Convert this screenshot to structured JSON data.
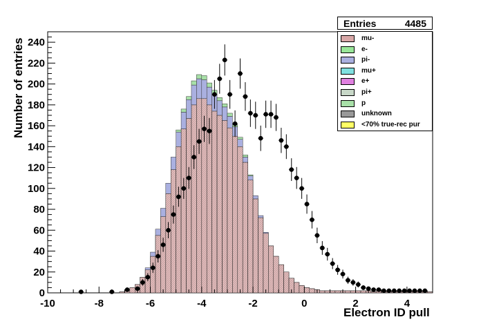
{
  "stats": {
    "label": "Entries",
    "value": "4485"
  },
  "axes": {
    "xlabel": "Electron ID pull",
    "ylabel": "Number of entries"
  },
  "legend": [
    {
      "label": "mu-",
      "color": "#d9a8a8"
    },
    {
      "label": "e-",
      "color": "#99e699"
    },
    {
      "label": "pi-",
      "color": "#aab0e0"
    },
    {
      "label": "mu+",
      "color": "#80e0e0"
    },
    {
      "label": "e+",
      "color": "#e080e0"
    },
    {
      "label": "pi+",
      "color": "#c8d8c8"
    },
    {
      "label": "p",
      "color": "#a8e0a8"
    },
    {
      "label": "unknown",
      "color": "#999999"
    },
    {
      "label": "<70% true-rec pur",
      "color": "#ffff66"
    }
  ],
  "chart_data": {
    "type": "histogram",
    "xlim": [
      -10,
      5
    ],
    "ylim": [
      0,
      250
    ],
    "xticks": [
      "-10",
      "-8",
      "-6",
      "-4",
      "-2",
      "0",
      "2",
      "4"
    ],
    "yticks": [
      "0",
      "20",
      "40",
      "60",
      "80",
      "100",
      "120",
      "140",
      "160",
      "180",
      "200",
      "220",
      "240"
    ],
    "bin_width": 0.2,
    "stack": [
      {
        "name": "mu-",
        "color": "#d9a8a8",
        "bins": [
          [
            -7.2,
            1
          ],
          [
            -7.0,
            3
          ],
          [
            -6.8,
            5
          ],
          [
            -6.6,
            8
          ],
          [
            -6.4,
            15
          ],
          [
            -6.2,
            22
          ],
          [
            -6.0,
            35
          ],
          [
            -5.8,
            55
          ],
          [
            -5.6,
            73
          ],
          [
            -5.4,
            95
          ],
          [
            -5.2,
            118
          ],
          [
            -5.0,
            140
          ],
          [
            -4.8,
            157
          ],
          [
            -4.6,
            167
          ],
          [
            -4.4,
            180
          ],
          [
            -4.2,
            186
          ],
          [
            -4.0,
            186
          ],
          [
            -3.8,
            180
          ],
          [
            -3.6,
            174
          ],
          [
            -3.4,
            170
          ],
          [
            -3.2,
            165
          ],
          [
            -3.0,
            158
          ],
          [
            -2.8,
            150
          ],
          [
            -2.6,
            140
          ],
          [
            -2.4,
            125
          ],
          [
            -2.2,
            108
          ],
          [
            -2.0,
            90
          ],
          [
            -1.8,
            72
          ],
          [
            -1.6,
            57
          ],
          [
            -1.4,
            45
          ],
          [
            -1.2,
            35
          ],
          [
            -1.0,
            27
          ],
          [
            -0.8,
            20
          ],
          [
            -0.6,
            14
          ],
          [
            -0.4,
            10
          ],
          [
            -0.2,
            7
          ],
          [
            0.0,
            5
          ],
          [
            0.2,
            4
          ],
          [
            0.4,
            3
          ],
          [
            0.6,
            2
          ],
          [
            0.8,
            2
          ],
          [
            1.0,
            2
          ],
          [
            1.2,
            2
          ],
          [
            1.4,
            2
          ],
          [
            1.6,
            2
          ],
          [
            1.8,
            2
          ],
          [
            2.0,
            2
          ],
          [
            2.2,
            2
          ],
          [
            2.4,
            2
          ],
          [
            2.6,
            1
          ],
          [
            2.8,
            2
          ],
          [
            3.0,
            2
          ],
          [
            3.2,
            2
          ],
          [
            3.4,
            2
          ],
          [
            3.6,
            2
          ],
          [
            3.8,
            2
          ],
          [
            4.0,
            1
          ],
          [
            4.2,
            2
          ],
          [
            4.4,
            2
          ],
          [
            4.6,
            2
          ],
          [
            4.8,
            1
          ]
        ]
      },
      {
        "name": "pi-",
        "color": "#aab0e0",
        "bins": [
          [
            -6.2,
            2
          ],
          [
            -6.0,
            4
          ],
          [
            -5.8,
            6
          ],
          [
            -5.6,
            8
          ],
          [
            -5.4,
            10
          ],
          [
            -5.2,
            12
          ],
          [
            -5.0,
            14
          ],
          [
            -4.8,
            16
          ],
          [
            -4.6,
            18
          ],
          [
            -4.4,
            19
          ],
          [
            -4.2,
            19
          ],
          [
            -4.0,
            18
          ],
          [
            -3.8,
            17
          ],
          [
            -3.6,
            16
          ],
          [
            -3.4,
            14
          ],
          [
            -3.2,
            13
          ],
          [
            -3.0,
            11
          ],
          [
            -2.8,
            9
          ],
          [
            -2.6,
            7
          ],
          [
            -2.4,
            5
          ],
          [
            -2.2,
            4
          ],
          [
            -2.0,
            3
          ],
          [
            -1.8,
            2
          ],
          [
            -1.6,
            1
          ]
        ]
      },
      {
        "name": "p",
        "color": "#a8e0a8",
        "bins": [
          [
            -5.0,
            2
          ],
          [
            -4.8,
            3
          ],
          [
            -4.6,
            3
          ],
          [
            -4.4,
            4
          ],
          [
            -4.2,
            4
          ],
          [
            -4.0,
            4
          ],
          [
            -3.8,
            4
          ],
          [
            -3.6,
            4
          ],
          [
            -3.4,
            3
          ],
          [
            -3.2,
            3
          ],
          [
            -3.0,
            3
          ],
          [
            -2.8,
            2
          ],
          [
            -2.6,
            2
          ],
          [
            -2.4,
            2
          ],
          [
            -2.2,
            1
          ]
        ]
      }
    ],
    "data_points": [
      {
        "x": -8.7,
        "y": 1
      },
      {
        "x": -7.5,
        "y": 1
      },
      {
        "x": -6.9,
        "y": 3
      },
      {
        "x": -6.5,
        "y": 4
      },
      {
        "x": -6.3,
        "y": 10
      },
      {
        "x": -6.1,
        "y": 15
      },
      {
        "x": -5.9,
        "y": 24
      },
      {
        "x": -5.7,
        "y": 35
      },
      {
        "x": -5.5,
        "y": 46
      },
      {
        "x": -5.3,
        "y": 60
      },
      {
        "x": -5.1,
        "y": 75
      },
      {
        "x": -4.9,
        "y": 92
      },
      {
        "x": -4.7,
        "y": 100
      },
      {
        "x": -4.5,
        "y": 110
      },
      {
        "x": -4.3,
        "y": 130
      },
      {
        "x": -4.1,
        "y": 145
      },
      {
        "x": -3.9,
        "y": 157
      },
      {
        "x": -3.7,
        "y": 155
      },
      {
        "x": -3.5,
        "y": 190
      },
      {
        "x": -3.3,
        "y": 205
      },
      {
        "x": -3.1,
        "y": 223
      },
      {
        "x": -2.9,
        "y": 190
      },
      {
        "x": -2.7,
        "y": 162
      },
      {
        "x": -2.5,
        "y": 210
      },
      {
        "x": -2.3,
        "y": 188
      },
      {
        "x": -2.1,
        "y": 172
      },
      {
        "x": -1.9,
        "y": 170
      },
      {
        "x": -1.7,
        "y": 148
      },
      {
        "x": -1.5,
        "y": 171
      },
      {
        "x": -1.3,
        "y": 171
      },
      {
        "x": -1.1,
        "y": 168
      },
      {
        "x": -0.9,
        "y": 146
      },
      {
        "x": -0.7,
        "y": 140
      },
      {
        "x": -0.5,
        "y": 118
      },
      {
        "x": -0.3,
        "y": 110
      },
      {
        "x": -0.1,
        "y": 100
      },
      {
        "x": 0.1,
        "y": 85
      },
      {
        "x": 0.3,
        "y": 70
      },
      {
        "x": 0.5,
        "y": 55
      },
      {
        "x": 0.7,
        "y": 43
      },
      {
        "x": 0.9,
        "y": 37
      },
      {
        "x": 1.1,
        "y": 28
      },
      {
        "x": 1.3,
        "y": 22
      },
      {
        "x": 1.5,
        "y": 18
      },
      {
        "x": 1.7,
        "y": 12
      },
      {
        "x": 1.9,
        "y": 10
      },
      {
        "x": 2.1,
        "y": 8
      },
      {
        "x": 2.3,
        "y": 5
      },
      {
        "x": 2.5,
        "y": 4
      },
      {
        "x": 2.7,
        "y": 3
      },
      {
        "x": 2.9,
        "y": 3
      },
      {
        "x": 3.1,
        "y": 2
      },
      {
        "x": 3.3,
        "y": 2
      },
      {
        "x": 3.5,
        "y": 2
      },
      {
        "x": 3.7,
        "y": 2
      },
      {
        "x": 3.9,
        "y": 2
      },
      {
        "x": 4.1,
        "y": 2
      },
      {
        "x": 4.3,
        "y": 2
      },
      {
        "x": 4.5,
        "y": 2
      },
      {
        "x": 4.7,
        "y": 2
      }
    ]
  }
}
